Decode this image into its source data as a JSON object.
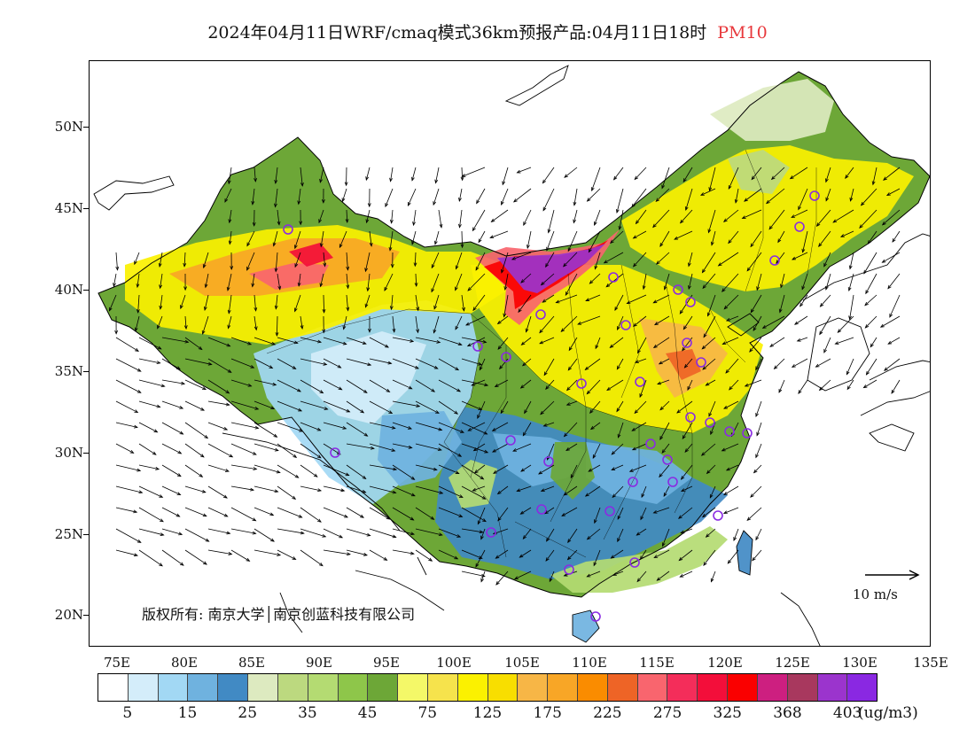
{
  "title": {
    "text": "2024年04月11日WRF/cmaq模式36km预报产品:04月11日18时",
    "pollutant": "PM10",
    "pollutant_color": "#e8383c"
  },
  "map": {
    "lat_labels": [
      "50N",
      "45N",
      "40N",
      "35N",
      "30N",
      "25N",
      "20N"
    ],
    "lat_values": [
      50,
      45,
      40,
      35,
      30,
      25,
      20
    ],
    "lon_labels": [
      "75E",
      "80E",
      "85E",
      "90E",
      "95E",
      "100E",
      "105E",
      "110E",
      "115E",
      "120E",
      "125E",
      "130E",
      "135E"
    ],
    "lon_values": [
      75,
      80,
      85,
      90,
      95,
      100,
      105,
      110,
      115,
      120,
      125,
      130,
      135
    ],
    "lon_range": [
      73,
      135
    ],
    "lat_range": [
      18,
      54
    ],
    "copyright": "版权所有: 南京大学│南京创蓝科技有限公司",
    "reference_vector": "10 m/s",
    "station_marker_color": "#8a2be2"
  },
  "colorbar": {
    "colors": [
      "#ffffff",
      "#d4edfa",
      "#a2d8f4",
      "#6fb2df",
      "#418ac4",
      "#ddeac0",
      "#bcd97f",
      "#b4db72",
      "#8ec64a",
      "#6da737",
      "#f4f868",
      "#f6e34c",
      "#fbf100",
      "#f8de00",
      "#f7b646",
      "#f8a626",
      "#fa8c00",
      "#ee6426",
      "#f9656e",
      "#f42d5a",
      "#f30e3a",
      "#fa0000",
      "#cd1f80",
      "#a8385e",
      "#9b34cd",
      "#8a28e2"
    ],
    "labels": [
      "5",
      "15",
      "25",
      "35",
      "45",
      "75",
      "125",
      "175",
      "225",
      "275",
      "325",
      "368",
      "403"
    ],
    "unit": "(ug/m3)"
  }
}
